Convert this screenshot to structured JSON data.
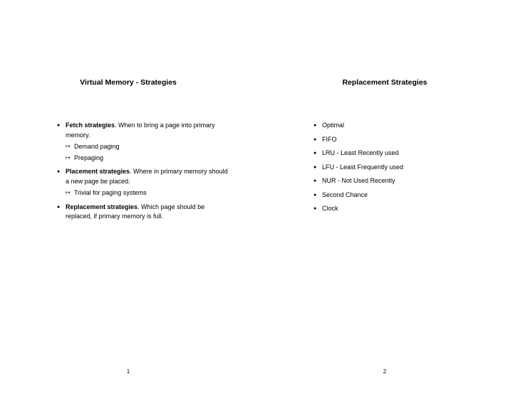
{
  "left": {
    "title": "Virtual Memory - Strategies",
    "items": [
      {
        "bold": "Fetch strategies",
        "text": ". When to bring a page into primary memory.",
        "sub": [
          "Demand paging",
          "Prepaging"
        ]
      },
      {
        "bold": "Placement strategies",
        "text": ". Where in primary memory should a new page be placed.",
        "sub": [
          "Trivial for paging systems"
        ]
      },
      {
        "bold": "Replacement strategies",
        "text": ". Which page should be replaced, if primary memory is full.",
        "sub": []
      }
    ],
    "pageNum": "1"
  },
  "right": {
    "title": "Replacement Strategies",
    "items": [
      "Optimal",
      "FIFO",
      "LRU - Least Recently used",
      "LFU - Least Frequently used",
      "NUR - Not Used Recently",
      "Second Chance",
      "Clock"
    ],
    "pageNum": "2"
  },
  "style": {
    "background": "#ffffff",
    "text_color": "#000000",
    "title_fontsize": 10.5,
    "body_fontsize": 9,
    "pagenum_fontsize": 8
  }
}
